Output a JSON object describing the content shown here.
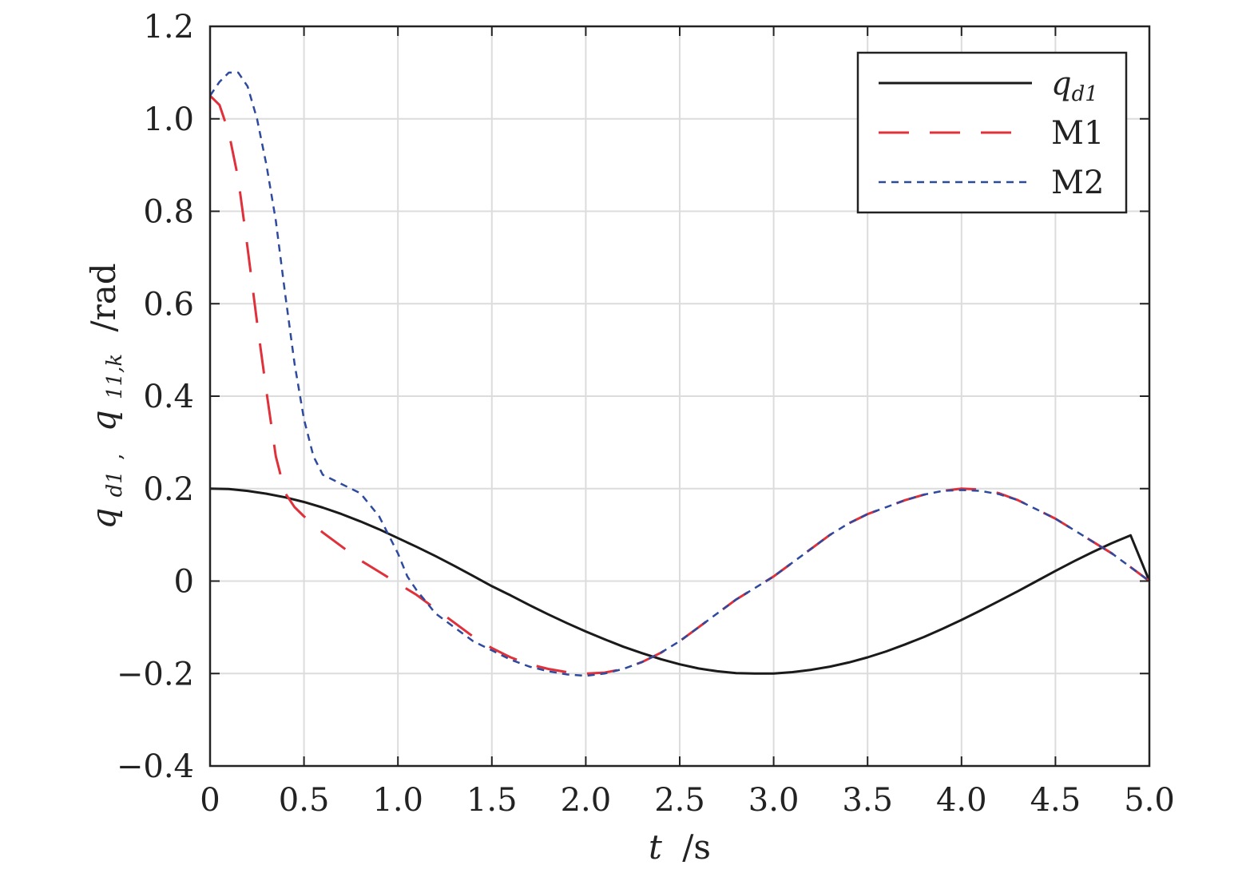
{
  "chart_data": {
    "type": "line",
    "xlabel": {
      "var": "t",
      "unit": "/s"
    },
    "ylabel": {
      "q1": "q",
      "q1_sub": "d1",
      "sep": ",",
      "q2": "q",
      "q2_sub": "11,k",
      "unit": "/rad"
    },
    "xlim": [
      0,
      5.0
    ],
    "ylim": [
      -0.4,
      1.2
    ],
    "x_ticks": [
      0,
      0.5,
      1.0,
      1.5,
      2.0,
      2.5,
      3.0,
      3.5,
      4.0,
      4.5,
      5.0
    ],
    "x_tick_labels": [
      "0",
      "0.5",
      "1.0",
      "1.5",
      "2.0",
      "2.5",
      "3.0",
      "3.5",
      "4.0",
      "4.5",
      "5.0"
    ],
    "y_ticks": [
      -0.4,
      -0.2,
      0,
      0.2,
      0.4,
      0.6,
      0.8,
      1.0,
      1.2
    ],
    "y_tick_labels": [
      "−0.4",
      "−0.2",
      "0",
      "0.2",
      "0.4",
      "0.6",
      "0.8",
      "1.0",
      "1.2"
    ],
    "grid": true,
    "legend_position": "top-right",
    "series": [
      {
        "name": "q_d1",
        "label_main": "q",
        "label_sub": "d1",
        "color": "#1a1a1a",
        "style": "solid",
        "x": [
          0,
          0.1,
          0.2,
          0.3,
          0.4,
          0.5,
          0.6,
          0.7,
          0.8,
          0.9,
          1.0,
          1.1,
          1.2,
          1.3,
          1.4,
          1.5,
          1.6,
          1.7,
          1.8,
          1.9,
          2.0,
          2.1,
          2.2,
          2.3,
          2.4,
          2.5,
          2.6,
          2.7,
          2.8,
          2.9,
          3.0,
          3.1,
          3.2,
          3.3,
          3.4,
          3.5,
          3.6,
          3.7,
          3.8,
          3.9,
          4.0,
          4.1,
          4.2,
          4.3,
          4.4,
          4.5,
          4.6,
          4.7,
          4.8,
          4.9,
          5.0
        ],
        "y": [
          0.2,
          0.199,
          0.195,
          0.189,
          0.181,
          0.171,
          0.159,
          0.145,
          0.129,
          0.112,
          0.093,
          0.074,
          0.054,
          0.033,
          0.011,
          -0.011,
          -0.031,
          -0.052,
          -0.072,
          -0.091,
          -0.109,
          -0.126,
          -0.142,
          -0.156,
          -0.169,
          -0.18,
          -0.189,
          -0.195,
          -0.199,
          -0.2,
          -0.2,
          -0.197,
          -0.192,
          -0.185,
          -0.176,
          -0.165,
          -0.152,
          -0.137,
          -0.121,
          -0.103,
          -0.084,
          -0.064,
          -0.043,
          -0.022,
          0.0,
          0.022,
          0.043,
          0.063,
          0.082,
          0.099,
          0.0
        ]
      },
      {
        "name": "M1",
        "label_main": "M1",
        "label_sub": "",
        "color": "#e0303a",
        "style": "longdash",
        "x": [
          0,
          0.05,
          0.1,
          0.15,
          0.2,
          0.25,
          0.3,
          0.35,
          0.4,
          0.45,
          0.5,
          0.6,
          0.7,
          0.8,
          0.9,
          1.0,
          1.1,
          1.2,
          1.3,
          1.4,
          1.5,
          1.6,
          1.7,
          1.8,
          1.9,
          2.0,
          2.1,
          2.2,
          2.3,
          2.4,
          2.5,
          2.6,
          2.7,
          2.8,
          2.9,
          3.0,
          3.1,
          3.2,
          3.3,
          3.4,
          3.5,
          3.6,
          3.7,
          3.8,
          3.9,
          4.0,
          4.1,
          4.2,
          4.3,
          4.4,
          4.5,
          4.6,
          4.7,
          4.8,
          4.9,
          5.0
        ],
        "y": [
          1.05,
          1.03,
          0.97,
          0.87,
          0.72,
          0.56,
          0.41,
          0.27,
          0.19,
          0.16,
          0.14,
          0.105,
          0.075,
          0.045,
          0.02,
          -0.005,
          -0.03,
          -0.06,
          -0.09,
          -0.12,
          -0.145,
          -0.165,
          -0.18,
          -0.19,
          -0.197,
          -0.2,
          -0.198,
          -0.19,
          -0.175,
          -0.155,
          -0.13,
          -0.1,
          -0.07,
          -0.04,
          -0.015,
          0.01,
          0.04,
          0.07,
          0.1,
          0.125,
          0.145,
          0.16,
          0.175,
          0.187,
          0.195,
          0.2,
          0.198,
          0.19,
          0.175,
          0.155,
          0.135,
          0.11,
          0.085,
          0.06,
          0.03,
          0.0
        ]
      },
      {
        "name": "M2",
        "label_main": "M2",
        "label_sub": "",
        "color": "#2e4a9e",
        "style": "shortdash",
        "x": [
          0,
          0.05,
          0.1,
          0.15,
          0.2,
          0.25,
          0.3,
          0.35,
          0.4,
          0.45,
          0.5,
          0.55,
          0.6,
          0.7,
          0.8,
          0.9,
          1.0,
          1.05,
          1.1,
          1.15,
          1.2,
          1.3,
          1.4,
          1.5,
          1.6,
          1.7,
          1.8,
          1.9,
          2.0,
          2.1,
          2.2,
          2.3,
          2.4,
          2.5,
          2.6,
          2.7,
          2.8,
          2.9,
          3.0,
          3.1,
          3.2,
          3.3,
          3.4,
          3.5,
          3.6,
          3.7,
          3.8,
          3.9,
          4.0,
          4.1,
          4.2,
          4.3,
          4.4,
          4.5,
          4.6,
          4.7,
          4.8,
          4.9,
          5.0
        ],
        "y": [
          1.05,
          1.08,
          1.1,
          1.1,
          1.07,
          1.0,
          0.9,
          0.78,
          0.62,
          0.47,
          0.35,
          0.27,
          0.23,
          0.21,
          0.19,
          0.14,
          0.06,
          0.01,
          -0.02,
          -0.045,
          -0.07,
          -0.1,
          -0.13,
          -0.15,
          -0.17,
          -0.185,
          -0.195,
          -0.202,
          -0.205,
          -0.2,
          -0.19,
          -0.175,
          -0.155,
          -0.13,
          -0.1,
          -0.07,
          -0.04,
          -0.015,
          0.01,
          0.04,
          0.07,
          0.1,
          0.125,
          0.145,
          0.16,
          0.175,
          0.187,
          0.195,
          0.197,
          0.195,
          0.188,
          0.175,
          0.155,
          0.135,
          0.11,
          0.085,
          0.06,
          0.03,
          0.0
        ]
      }
    ]
  }
}
